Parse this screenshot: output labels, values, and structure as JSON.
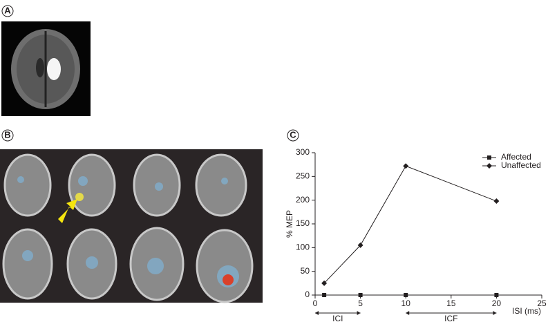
{
  "panel_labels": [
    "A",
    "B",
    "C"
  ],
  "chart_data": {
    "type": "line",
    "x": [
      1,
      5,
      10,
      20
    ],
    "series": [
      {
        "name": "Affected",
        "color": "#231f20",
        "marker": "square",
        "values": [
          0,
          0,
          0,
          0
        ]
      },
      {
        "name": "Unaffected",
        "color": "#231f20",
        "marker": "diamond",
        "values": [
          25,
          105,
          272,
          198
        ]
      }
    ],
    "xlabel": "ISI (ms)",
    "ylabel": "% MEP",
    "xlim": [
      0,
      25
    ],
    "xticks": [
      0,
      5,
      10,
      15,
      20,
      25
    ],
    "ylim": [
      0,
      300
    ],
    "yticks": [
      0,
      50,
      100,
      150,
      200,
      250,
      300
    ],
    "grid": false,
    "legend": "upper right",
    "annotations": [
      {
        "text": "ICI",
        "x": [
          0,
          5
        ]
      },
      {
        "text": "ICF",
        "x": [
          10,
          20
        ]
      }
    ]
  }
}
